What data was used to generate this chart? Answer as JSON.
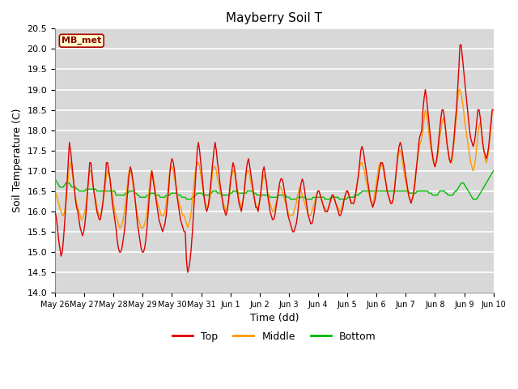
{
  "title": "Mayberry Soil T",
  "xlabel": "Time (dd)",
  "ylabel": "Soil Temperature (C)",
  "ylim": [
    14.0,
    20.5
  ],
  "yticks": [
    14.0,
    14.5,
    15.0,
    15.5,
    16.0,
    16.5,
    17.0,
    17.5,
    18.0,
    18.5,
    19.0,
    19.5,
    20.0,
    20.5
  ],
  "bg_color": "#d8d8d8",
  "grid_color": "#ffffff",
  "legend_label": "MB_met",
  "legend_box_color": "#ffffcc",
  "legend_box_edge": "#cc0000",
  "series_colors": [
    "#dd0000",
    "#ff9900",
    "#00bb00"
  ],
  "series_names": [
    "Top",
    "Middle",
    "Bottom"
  ],
  "xtick_labels": [
    "May 26",
    "May 27",
    "May 28",
    "May 29",
    "May 30",
    "May 31",
    "Jun 1",
    "Jun 2",
    "Jun 3",
    "Jun 4",
    "Jun 5",
    "Jun 6",
    "Jun 7",
    "Jun 8",
    "Jun 9",
    "Jun 10"
  ],
  "top_data": [
    16.0,
    15.85,
    15.6,
    15.3,
    15.1,
    14.9,
    15.0,
    15.3,
    15.7,
    16.2,
    16.7,
    17.2,
    17.7,
    17.5,
    17.2,
    16.9,
    16.6,
    16.3,
    16.1,
    16.0,
    15.8,
    15.6,
    15.5,
    15.4,
    15.5,
    15.7,
    16.0,
    16.4,
    16.8,
    17.2,
    17.2,
    16.9,
    16.6,
    16.4,
    16.2,
    16.0,
    15.9,
    15.8,
    15.8,
    16.0,
    16.2,
    16.5,
    16.8,
    17.2,
    17.2,
    17.0,
    16.8,
    16.5,
    16.2,
    16.0,
    15.8,
    15.6,
    15.3,
    15.1,
    15.0,
    15.0,
    15.1,
    15.3,
    15.5,
    15.8,
    16.2,
    16.6,
    16.9,
    17.1,
    17.0,
    16.8,
    16.6,
    16.3,
    16.0,
    15.7,
    15.5,
    15.3,
    15.1,
    15.0,
    15.0,
    15.1,
    15.3,
    15.6,
    16.0,
    16.4,
    16.7,
    17.0,
    16.8,
    16.6,
    16.4,
    16.2,
    16.0,
    15.8,
    15.7,
    15.6,
    15.5,
    15.6,
    15.7,
    15.9,
    16.2,
    16.5,
    16.9,
    17.2,
    17.3,
    17.2,
    17.0,
    16.7,
    16.4,
    16.2,
    16.0,
    15.8,
    15.7,
    15.6,
    15.5,
    15.5,
    14.8,
    14.5,
    14.6,
    14.8,
    15.1,
    15.5,
    16.0,
    16.5,
    17.0,
    17.5,
    17.7,
    17.5,
    17.2,
    16.9,
    16.6,
    16.3,
    16.1,
    16.0,
    16.1,
    16.3,
    16.6,
    16.9,
    17.2,
    17.5,
    17.7,
    17.5,
    17.2,
    17.0,
    16.7,
    16.5,
    16.3,
    16.1,
    16.0,
    15.9,
    16.0,
    16.2,
    16.5,
    16.8,
    17.0,
    17.2,
    17.1,
    16.9,
    16.6,
    16.4,
    16.2,
    16.1,
    16.0,
    16.2,
    16.4,
    16.7,
    17.0,
    17.2,
    17.3,
    17.1,
    16.9,
    16.7,
    16.5,
    16.3,
    16.1,
    16.1,
    16.0,
    16.2,
    16.4,
    16.7,
    17.0,
    17.1,
    16.9,
    16.7,
    16.4,
    16.2,
    16.0,
    15.9,
    15.8,
    15.8,
    15.9,
    16.1,
    16.3,
    16.5,
    16.7,
    16.8,
    16.8,
    16.7,
    16.5,
    16.3,
    16.1,
    15.9,
    15.8,
    15.7,
    15.6,
    15.5,
    15.5,
    15.6,
    15.7,
    15.9,
    16.2,
    16.5,
    16.7,
    16.8,
    16.7,
    16.5,
    16.3,
    16.1,
    15.9,
    15.8,
    15.7,
    15.7,
    15.8,
    16.0,
    16.2,
    16.4,
    16.5,
    16.5,
    16.4,
    16.3,
    16.2,
    16.1,
    16.0,
    16.0,
    16.0,
    16.1,
    16.2,
    16.3,
    16.4,
    16.4,
    16.3,
    16.2,
    16.1,
    16.0,
    15.9,
    15.9,
    16.0,
    16.1,
    16.3,
    16.4,
    16.5,
    16.5,
    16.4,
    16.3,
    16.2,
    16.2,
    16.2,
    16.3,
    16.5,
    16.7,
    16.9,
    17.2,
    17.5,
    17.6,
    17.5,
    17.3,
    17.1,
    16.9,
    16.7,
    16.5,
    16.3,
    16.2,
    16.1,
    16.2,
    16.3,
    16.5,
    16.7,
    16.9,
    17.1,
    17.2,
    17.2,
    17.1,
    16.9,
    16.7,
    16.5,
    16.4,
    16.3,
    16.2,
    16.2,
    16.3,
    16.5,
    16.8,
    17.1,
    17.4,
    17.6,
    17.7,
    17.6,
    17.4,
    17.2,
    17.0,
    16.8,
    16.6,
    16.4,
    16.3,
    16.2,
    16.3,
    16.4,
    16.6,
    16.9,
    17.2,
    17.5,
    17.8,
    17.9,
    18.0,
    18.5,
    18.8,
    19.0,
    18.8,
    18.5,
    18.2,
    17.9,
    17.6,
    17.4,
    17.2,
    17.1,
    17.2,
    17.4,
    17.7,
    18.0,
    18.3,
    18.5,
    18.5,
    18.3,
    18.0,
    17.7,
    17.5,
    17.3,
    17.2,
    17.3,
    17.5,
    17.8,
    18.2,
    18.5,
    19.0,
    19.5,
    20.1,
    20.1,
    19.8,
    19.5,
    19.2,
    18.9,
    18.6,
    18.3,
    18.0,
    17.8,
    17.7,
    17.6,
    17.7,
    17.9,
    18.2,
    18.5,
    18.5,
    18.3,
    18.0,
    17.7,
    17.5,
    17.4,
    17.3,
    17.4,
    17.6,
    17.9,
    18.2,
    18.5,
    18.5
  ],
  "middle_data": [
    16.5,
    16.4,
    16.3,
    16.2,
    16.1,
    16.0,
    15.9,
    15.9,
    16.0,
    16.2,
    16.5,
    16.8,
    17.1,
    17.2,
    17.0,
    16.8,
    16.6,
    16.4,
    16.2,
    16.1,
    16.0,
    15.9,
    15.8,
    15.8,
    15.9,
    16.0,
    16.2,
    16.5,
    16.8,
    17.0,
    17.0,
    16.8,
    16.6,
    16.4,
    16.3,
    16.1,
    16.0,
    15.9,
    15.9,
    16.0,
    16.2,
    16.4,
    16.6,
    16.9,
    17.0,
    16.9,
    16.8,
    16.6,
    16.4,
    16.2,
    16.0,
    15.9,
    15.8,
    15.7,
    15.6,
    15.6,
    15.7,
    15.8,
    16.0,
    16.2,
    16.5,
    16.8,
    17.0,
    17.0,
    16.9,
    16.7,
    16.5,
    16.3,
    16.1,
    15.9,
    15.8,
    15.7,
    15.6,
    15.6,
    15.6,
    15.7,
    15.8,
    16.0,
    16.3,
    16.6,
    16.9,
    17.0,
    16.9,
    16.7,
    16.5,
    16.3,
    16.2,
    16.1,
    16.0,
    15.9,
    15.9,
    15.9,
    16.0,
    16.2,
    16.4,
    16.7,
    17.0,
    17.1,
    17.1,
    17.0,
    16.8,
    16.7,
    16.5,
    16.3,
    16.2,
    16.1,
    16.0,
    15.9,
    15.9,
    15.8,
    15.7,
    15.6,
    15.7,
    15.8,
    16.0,
    16.3,
    16.6,
    16.9,
    17.1,
    17.2,
    17.2,
    17.1,
    16.9,
    16.7,
    16.5,
    16.3,
    16.2,
    16.1,
    16.1,
    16.2,
    16.4,
    16.7,
    17.0,
    17.1,
    17.1,
    17.0,
    16.8,
    16.7,
    16.5,
    16.4,
    16.3,
    16.2,
    16.1,
    16.0,
    16.1,
    16.2,
    16.4,
    16.7,
    16.9,
    17.0,
    17.0,
    16.8,
    16.7,
    16.5,
    16.3,
    16.2,
    16.1,
    16.2,
    16.4,
    16.6,
    16.9,
    17.0,
    17.0,
    16.9,
    16.7,
    16.6,
    16.4,
    16.3,
    16.2,
    16.1,
    16.1,
    16.2,
    16.4,
    16.6,
    16.8,
    16.9,
    16.8,
    16.7,
    16.5,
    16.3,
    16.2,
    16.1,
    16.0,
    16.0,
    16.1,
    16.2,
    16.3,
    16.5,
    16.6,
    16.6,
    16.5,
    16.4,
    16.3,
    16.2,
    16.1,
    16.0,
    15.9,
    15.9,
    15.9,
    15.9,
    16.0,
    16.1,
    16.2,
    16.4,
    16.5,
    16.6,
    16.5,
    16.4,
    16.3,
    16.2,
    16.1,
    16.0,
    15.9,
    15.9,
    15.9,
    16.0,
    16.1,
    16.2,
    16.3,
    16.4,
    16.5,
    16.5,
    16.4,
    16.3,
    16.2,
    16.1,
    16.1,
    16.0,
    16.0,
    16.1,
    16.2,
    16.3,
    16.4,
    16.4,
    16.3,
    16.2,
    16.1,
    16.1,
    16.0,
    16.0,
    16.1,
    16.2,
    16.3,
    16.4,
    16.5,
    16.5,
    16.4,
    16.3,
    16.2,
    16.2,
    16.2,
    16.3,
    16.5,
    16.7,
    16.9,
    17.1,
    17.2,
    17.2,
    17.1,
    17.0,
    16.8,
    16.7,
    16.5,
    16.4,
    16.3,
    16.2,
    16.2,
    16.3,
    16.5,
    16.7,
    16.9,
    17.1,
    17.2,
    17.2,
    17.1,
    17.0,
    16.8,
    16.7,
    16.5,
    16.4,
    16.3,
    16.2,
    16.2,
    16.3,
    16.5,
    16.8,
    17.1,
    17.3,
    17.5,
    17.5,
    17.4,
    17.2,
    17.0,
    16.8,
    16.7,
    16.5,
    16.4,
    16.3,
    16.3,
    16.3,
    16.5,
    16.7,
    17.0,
    17.2,
    17.4,
    17.6,
    17.7,
    17.8,
    18.0,
    18.3,
    18.5,
    18.4,
    18.2,
    17.9,
    17.7,
    17.5,
    17.3,
    17.2,
    17.1,
    17.2,
    17.3,
    17.5,
    17.8,
    18.0,
    18.2,
    18.3,
    18.2,
    18.0,
    17.7,
    17.5,
    17.3,
    17.2,
    17.2,
    17.4,
    17.7,
    18.0,
    18.3,
    18.7,
    19.0,
    19.0,
    18.9,
    18.7,
    18.5,
    18.2,
    18.0,
    17.8,
    17.6,
    17.4,
    17.2,
    17.1,
    17.0,
    17.1,
    17.3,
    17.6,
    17.9,
    18.1,
    18.2,
    18.0,
    17.7,
    17.5,
    17.3,
    17.2,
    17.3,
    17.5,
    17.8,
    18.1,
    18.5,
    18.5
  ],
  "bottom_data": [
    16.8,
    16.75,
    16.7,
    16.65,
    16.6,
    16.6,
    16.6,
    16.6,
    16.65,
    16.7,
    16.7,
    16.7,
    16.7,
    16.65,
    16.6,
    16.6,
    16.6,
    16.6,
    16.55,
    16.55,
    16.5,
    16.5,
    16.5,
    16.5,
    16.5,
    16.5,
    16.55,
    16.55,
    16.55,
    16.55,
    16.55,
    16.55,
    16.55,
    16.55,
    16.55,
    16.5,
    16.5,
    16.5,
    16.5,
    16.5,
    16.5,
    16.5,
    16.5,
    16.5,
    16.5,
    16.5,
    16.5,
    16.5,
    16.5,
    16.5,
    16.5,
    16.4,
    16.4,
    16.4,
    16.4,
    16.4,
    16.4,
    16.4,
    16.4,
    16.45,
    16.45,
    16.45,
    16.5,
    16.5,
    16.5,
    16.5,
    16.5,
    16.45,
    16.45,
    16.4,
    16.4,
    16.35,
    16.35,
    16.35,
    16.35,
    16.35,
    16.35,
    16.4,
    16.4,
    16.4,
    16.45,
    16.45,
    16.45,
    16.45,
    16.4,
    16.4,
    16.4,
    16.4,
    16.35,
    16.35,
    16.35,
    16.35,
    16.35,
    16.4,
    16.4,
    16.4,
    16.4,
    16.45,
    16.45,
    16.45,
    16.45,
    16.45,
    16.45,
    16.4,
    16.4,
    16.4,
    16.35,
    16.35,
    16.35,
    16.35,
    16.3,
    16.3,
    16.3,
    16.3,
    16.3,
    16.35,
    16.35,
    16.4,
    16.4,
    16.45,
    16.45,
    16.45,
    16.45,
    16.45,
    16.4,
    16.4,
    16.4,
    16.4,
    16.4,
    16.4,
    16.45,
    16.45,
    16.5,
    16.5,
    16.5,
    16.5,
    16.45,
    16.45,
    16.45,
    16.45,
    16.4,
    16.4,
    16.4,
    16.4,
    16.4,
    16.4,
    16.4,
    16.45,
    16.45,
    16.5,
    16.5,
    16.5,
    16.5,
    16.45,
    16.45,
    16.45,
    16.45,
    16.45,
    16.45,
    16.45,
    16.45,
    16.5,
    16.5,
    16.5,
    16.5,
    16.5,
    16.45,
    16.45,
    16.45,
    16.4,
    16.4,
    16.4,
    16.4,
    16.4,
    16.4,
    16.4,
    16.4,
    16.4,
    16.4,
    16.4,
    16.35,
    16.35,
    16.35,
    16.35,
    16.35,
    16.35,
    16.35,
    16.4,
    16.4,
    16.4,
    16.4,
    16.4,
    16.4,
    16.4,
    16.35,
    16.35,
    16.35,
    16.3,
    16.3,
    16.3,
    16.3,
    16.3,
    16.3,
    16.35,
    16.35,
    16.35,
    16.35,
    16.35,
    16.35,
    16.35,
    16.3,
    16.3,
    16.3,
    16.3,
    16.3,
    16.3,
    16.35,
    16.35,
    16.35,
    16.35,
    16.35,
    16.35,
    16.35,
    16.35,
    16.35,
    16.35,
    16.3,
    16.3,
    16.3,
    16.3,
    16.3,
    16.35,
    16.35,
    16.35,
    16.35,
    16.35,
    16.35,
    16.35,
    16.3,
    16.3,
    16.3,
    16.3,
    16.3,
    16.3,
    16.3,
    16.35,
    16.35,
    16.35,
    16.35,
    16.35,
    16.35,
    16.4,
    16.4,
    16.4,
    16.4,
    16.45,
    16.45,
    16.5,
    16.5,
    16.5,
    16.5,
    16.5,
    16.5,
    16.5,
    16.5,
    16.5,
    16.5,
    16.5,
    16.5,
    16.5,
    16.5,
    16.5,
    16.5,
    16.5,
    16.5,
    16.5,
    16.5,
    16.5,
    16.5,
    16.5,
    16.5,
    16.5,
    16.5,
    16.5,
    16.5,
    16.5,
    16.5,
    16.5,
    16.5,
    16.5,
    16.5,
    16.5,
    16.5,
    16.5,
    16.5,
    16.5,
    16.5,
    16.45,
    16.45,
    16.45,
    16.45,
    16.45,
    16.45,
    16.5,
    16.5,
    16.5,
    16.5,
    16.5,
    16.5,
    16.5,
    16.5,
    16.5,
    16.5,
    16.45,
    16.45,
    16.45,
    16.4,
    16.4,
    16.4,
    16.4,
    16.4,
    16.45,
    16.5,
    16.5,
    16.5,
    16.5,
    16.5,
    16.45,
    16.45,
    16.4,
    16.4,
    16.4,
    16.4,
    16.4,
    16.45,
    16.5,
    16.5,
    16.55,
    16.6,
    16.65,
    16.7,
    16.7,
    16.7,
    16.65,
    16.6,
    16.55,
    16.5,
    16.45,
    16.4,
    16.35,
    16.3,
    16.3,
    16.3,
    16.3,
    16.35,
    16.4,
    16.45,
    16.5,
    16.55,
    16.6,
    16.65,
    16.7,
    16.75,
    16.8,
    16.85,
    16.9,
    16.95,
    17.0
  ]
}
